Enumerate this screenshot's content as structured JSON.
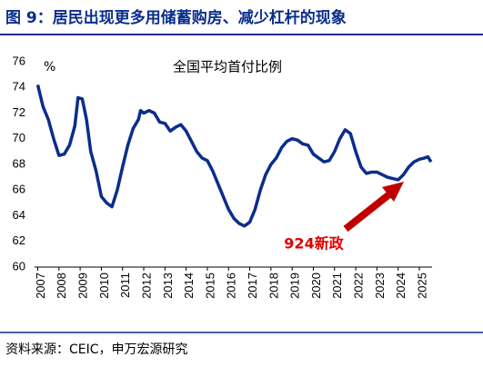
{
  "chart_data": {
    "type": "line",
    "title": "图 9：居民出现更多用储蓄购房、减少杠杆的现象",
    "series_title": "全国平均首付比例",
    "y_unit": "%",
    "annotation": "924新政",
    "source": "资料来源：CEIC，申万宏源研究",
    "x": [
      2007.0,
      2007.25,
      2007.5,
      2007.75,
      2008.0,
      2008.25,
      2008.5,
      2008.75,
      2008.9,
      2009.1,
      2009.3,
      2009.5,
      2009.75,
      2010.0,
      2010.25,
      2010.5,
      2010.75,
      2011.0,
      2011.25,
      2011.5,
      2011.75,
      2011.85,
      2012.0,
      2012.25,
      2012.5,
      2012.75,
      2013.0,
      2013.25,
      2013.5,
      2013.75,
      2014.0,
      2014.25,
      2014.5,
      2014.75,
      2015.0,
      2015.25,
      2015.5,
      2015.75,
      2016.0,
      2016.25,
      2016.5,
      2016.75,
      2017.0,
      2017.25,
      2017.5,
      2017.75,
      2018.0,
      2018.25,
      2018.5,
      2018.75,
      2019.0,
      2019.25,
      2019.5,
      2019.75,
      2020.0,
      2020.25,
      2020.5,
      2020.75,
      2021.0,
      2021.25,
      2021.5,
      2021.75,
      2022.0,
      2022.25,
      2022.5,
      2022.75,
      2023.0,
      2023.25,
      2023.5,
      2023.75,
      2024.0,
      2024.25,
      2024.5,
      2024.75,
      2025.0,
      2025.25,
      2025.4,
      2025.55
    ],
    "series": [
      {
        "name": "全国平均首付比例",
        "color": "#0b2d8c",
        "values": [
          74.2,
          72.5,
          71.5,
          70.0,
          68.7,
          68.8,
          69.5,
          71.0,
          73.2,
          73.1,
          71.5,
          69.0,
          67.5,
          65.5,
          65.0,
          64.7,
          66.0,
          67.8,
          69.5,
          70.8,
          71.5,
          72.2,
          72.0,
          72.2,
          72.0,
          71.3,
          71.2,
          70.6,
          70.9,
          71.1,
          70.6,
          69.8,
          69.0,
          68.5,
          68.3,
          67.5,
          66.5,
          65.5,
          64.5,
          63.8,
          63.4,
          63.2,
          63.5,
          64.5,
          66.0,
          67.2,
          68.0,
          68.5,
          69.3,
          69.8,
          70.0,
          69.9,
          69.6,
          69.5,
          68.8,
          68.5,
          68.2,
          68.3,
          69.0,
          70.0,
          70.7,
          70.4,
          69.0,
          67.8,
          67.3,
          67.4,
          67.4,
          67.2,
          67.0,
          66.9,
          66.8,
          67.2,
          67.8,
          68.2,
          68.4,
          68.5,
          68.6,
          68.2
        ]
      }
    ],
    "xlim": [
      2006.85,
      2025.6
    ],
    "xticks": [
      2007,
      2008,
      2009,
      2010,
      2011,
      2012,
      2013,
      2014,
      2015,
      2016,
      2017,
      2018,
      2019,
      2020,
      2021,
      2022,
      2023,
      2024,
      2025
    ],
    "ylim": [
      60,
      76
    ],
    "yticks": [
      60,
      62,
      64,
      66,
      68,
      70,
      72,
      74,
      76
    ]
  }
}
